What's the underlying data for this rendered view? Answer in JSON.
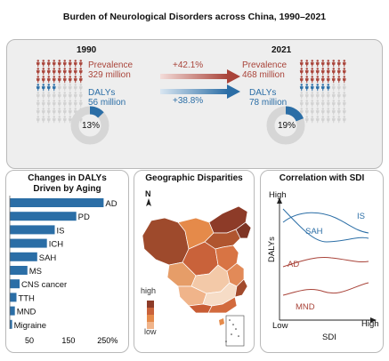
{
  "title": "Burden of Neurological Disorders across China, 1990–2021",
  "colors": {
    "red": "#a9443a",
    "blue": "#2b6ea6",
    "grey": "#d2d2d2",
    "panel_bg": "#eeeeee"
  },
  "summary": {
    "left": {
      "year": "1990",
      "prevalence_label": "Prevalence",
      "prevalence_value": "329 million",
      "dalys_label": "DALYs",
      "dalys_value": "56 million",
      "share": "13%",
      "share_fraction": 0.13
    },
    "right": {
      "year": "2021",
      "prevalence_label": "Prevalence",
      "prevalence_value": "468 million",
      "dalys_label": "DALYs",
      "dalys_value": "78 million",
      "share": "19%",
      "share_fraction": 0.19
    },
    "prevalence_change": "+42.1%",
    "dalys_change": "+38.8%",
    "icons": "person-icon"
  },
  "panels": {
    "aging": {
      "title_line1": "Changes in DALYs",
      "title_line2": "Driven by Aging",
      "chart_data": {
        "type": "bar",
        "orientation": "horizontal",
        "categories": [
          "AD",
          "PD",
          "IS",
          "ICH",
          "SAH",
          "MS",
          "CNS cancer",
          "TTH",
          "MND",
          "Migraine"
        ],
        "values": [
          240,
          170,
          115,
          95,
          70,
          45,
          25,
          17,
          13,
          6
        ],
        "xticks": [
          "50",
          "150",
          "250%"
        ],
        "xlim": [
          0,
          280
        ]
      }
    },
    "geo": {
      "title": "Geographic Disparities",
      "north": "N",
      "legend_high": "high",
      "legend_low": "low"
    },
    "sdi": {
      "title": "Correlation with SDI",
      "y_high": "High",
      "x_low": "Low",
      "x_high": "High",
      "ylabel": "DALYs",
      "xlabel": "SDI",
      "series": [
        "IS",
        "SAH",
        "AD",
        "MND"
      ]
    }
  }
}
